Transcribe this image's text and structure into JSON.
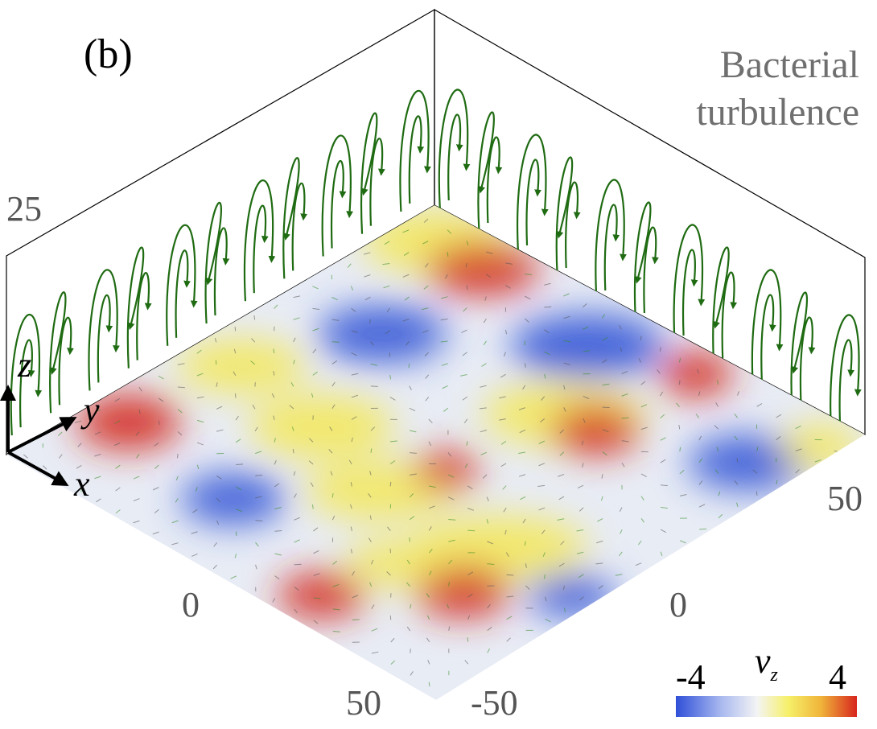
{
  "panel_label": "(b)",
  "title_line1": "Bacterial",
  "title_line2": "turbulence",
  "ticks": {
    "z_top": "25",
    "x_zero": "0",
    "x_fifty": "50",
    "y_neg": "-50",
    "y_zero": "0",
    "y_fifty": "50"
  },
  "axes": {
    "x": "x",
    "y": "y",
    "z": "z"
  },
  "colorbar": {
    "min_label": "-4",
    "max_label": "4",
    "variable": "v",
    "variable_sub": "z",
    "stops": [
      "#2f4fd8",
      "#a9b9ef",
      "#f4f4f4",
      "#f6f06a",
      "#f0b53a",
      "#d7261e"
    ]
  },
  "colors": {
    "streamline": "#1f6b12",
    "blue": "#3557d6",
    "red": "#d42a1c",
    "yellow": "#f3e85c"
  }
}
